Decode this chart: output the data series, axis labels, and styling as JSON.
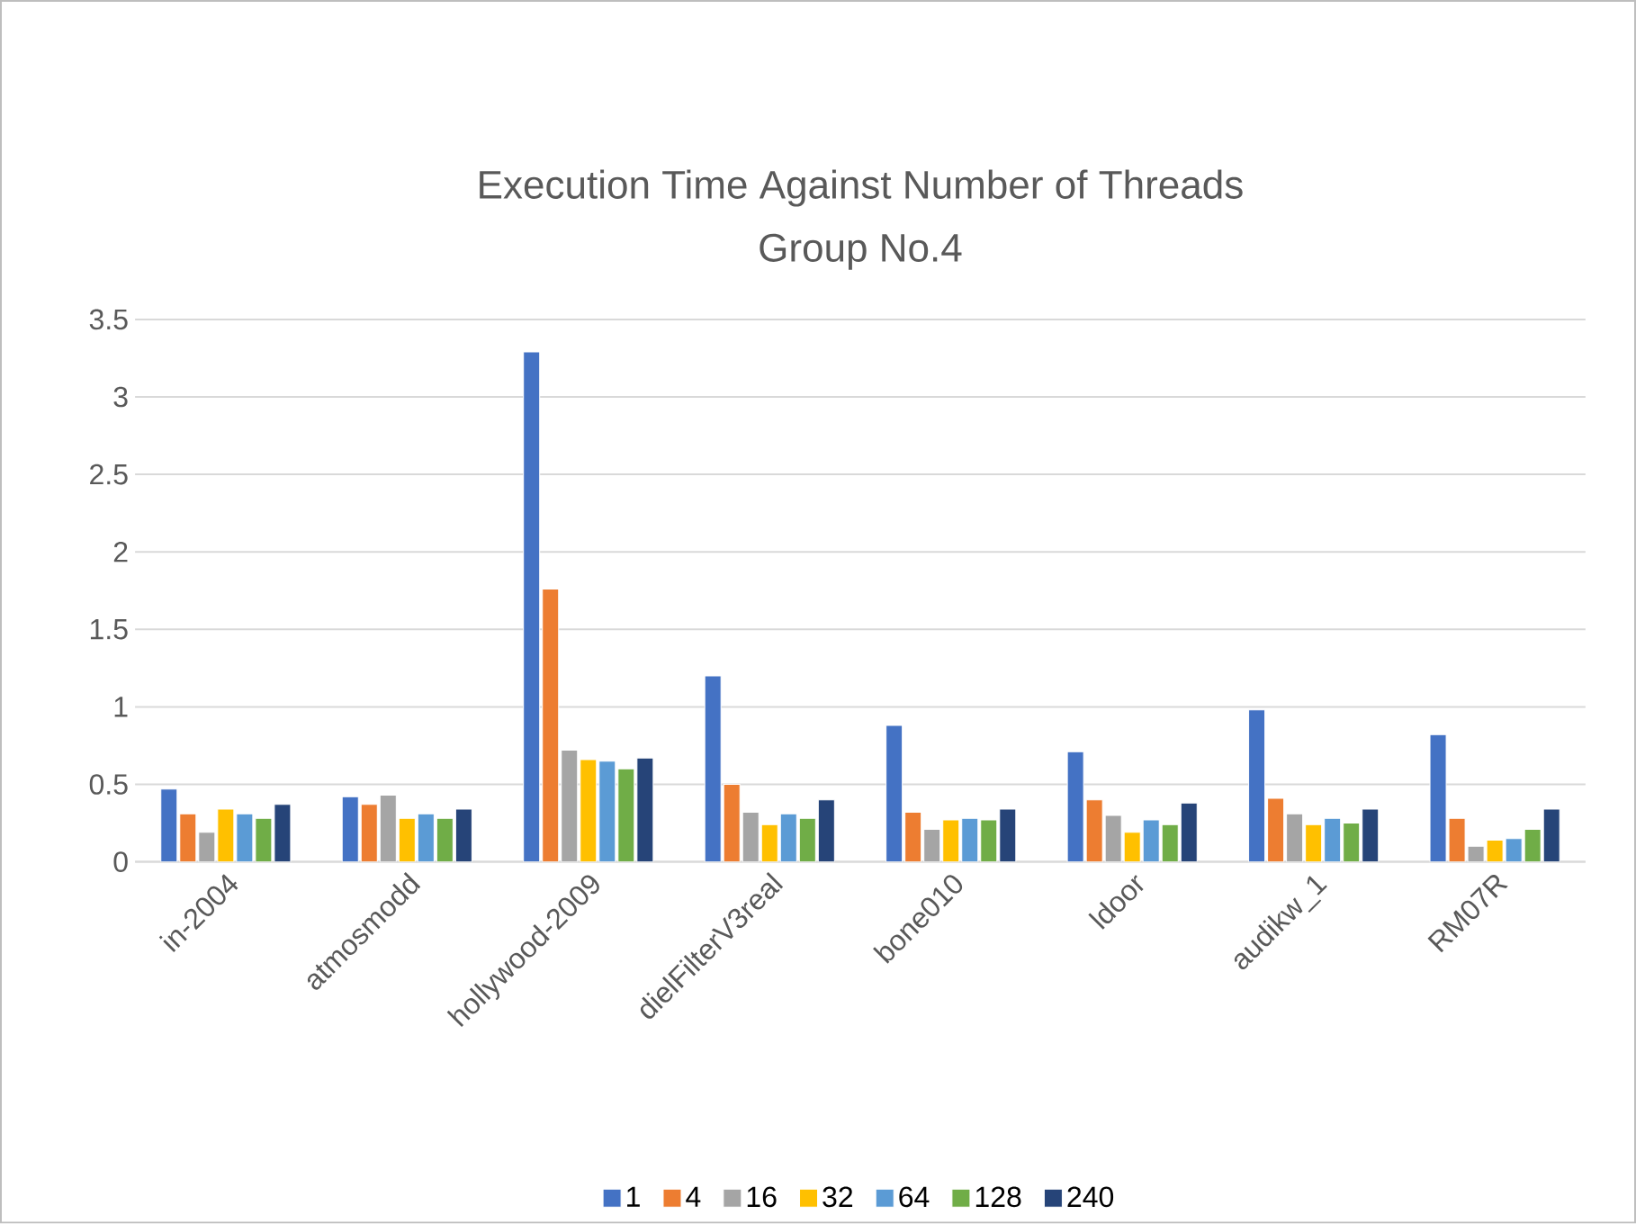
{
  "chart_data": {
    "type": "bar",
    "title": "Execution Time Against Number of Threads",
    "subtitle": "Group No.4",
    "categories": [
      "in-2004",
      "atmosmodd",
      "hollywood-2009",
      "dielFilterV3real",
      "bone010",
      "ldoor",
      "audikw_1",
      "RM07R"
    ],
    "series": [
      {
        "name": "1",
        "color": "#4472c4",
        "values": [
          0.47,
          0.42,
          3.29,
          1.2,
          0.88,
          0.71,
          0.98,
          0.82
        ]
      },
      {
        "name": "4",
        "color": "#ed7d31",
        "values": [
          0.31,
          0.37,
          1.76,
          0.5,
          0.32,
          0.4,
          0.41,
          0.28
        ]
      },
      {
        "name": "16",
        "color": "#a5a5a5",
        "values": [
          0.19,
          0.43,
          0.72,
          0.32,
          0.21,
          0.3,
          0.31,
          0.1
        ]
      },
      {
        "name": "32",
        "color": "#ffc000",
        "values": [
          0.34,
          0.28,
          0.66,
          0.24,
          0.27,
          0.19,
          0.24,
          0.14
        ]
      },
      {
        "name": "64",
        "color": "#5b9bd5",
        "values": [
          0.31,
          0.31,
          0.65,
          0.31,
          0.28,
          0.27,
          0.28,
          0.15
        ]
      },
      {
        "name": "128",
        "color": "#70ad47",
        "values": [
          0.28,
          0.28,
          0.6,
          0.28,
          0.27,
          0.24,
          0.25,
          0.21
        ]
      },
      {
        "name": "240",
        "color": "#264478",
        "values": [
          0.37,
          0.34,
          0.67,
          0.4,
          0.34,
          0.38,
          0.34,
          0.34
        ]
      }
    ],
    "ylim": [
      0,
      3.5
    ],
    "yticks": [
      0,
      0.5,
      1,
      1.5,
      2,
      2.5,
      3,
      3.5
    ],
    "grid": "y",
    "legend": "bottom"
  }
}
